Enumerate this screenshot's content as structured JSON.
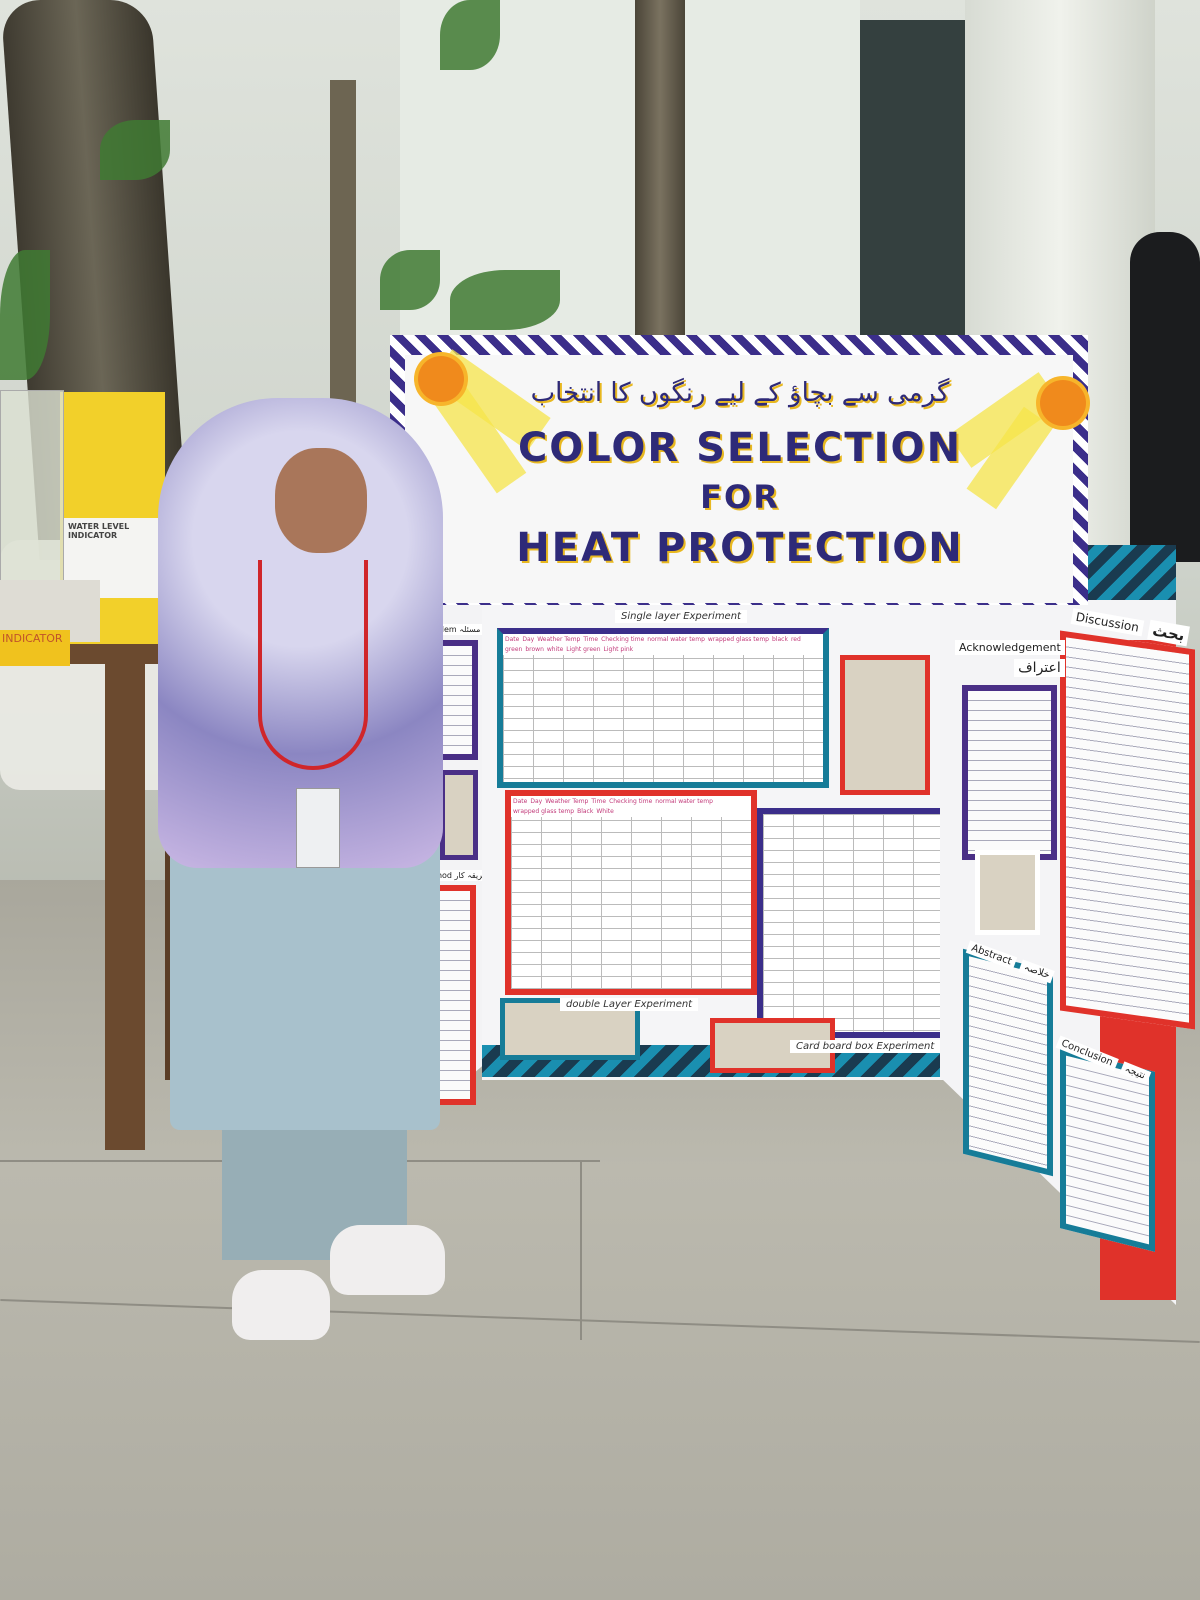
{
  "scene": {
    "type": "photograph",
    "description_colors": {
      "board_accent_teal": "#1a8fb0",
      "board_accent_purple": "#3b2e8a",
      "board_accent_red": "#e0322a",
      "title_text": "#2e2a78",
      "title_shadow": "#e8b820"
    }
  },
  "title_card": {
    "urdu_title": "گرمی سے بچاؤ کے لیے رنگوں کا انتخاب",
    "line1": "COLOR SELECTION",
    "line2": "FOR",
    "line3": "HEAT PROTECTION"
  },
  "center_panel": {
    "single_layer_label": "Single layer Experiment",
    "single_layer_headers": [
      "Date",
      "Day",
      "Weather Temp",
      "Time",
      "Checking time",
      "normal water temp",
      "wrapped glass temp",
      "black",
      "red",
      "green",
      "brown",
      "white",
      "Light green",
      "Light pink"
    ],
    "double_layer_headers": [
      "Date",
      "Day",
      "Weather Temp",
      "Time",
      "Checking time",
      "normal water temp",
      "wrapped glass temp",
      "Black",
      "White"
    ],
    "double_layer_label": "double Layer Experiment",
    "cardboard_label": "Card board box Experiment"
  },
  "left_wing": {
    "problem_label": "Problem مسئلہ",
    "method_label": "Method طریقہ کار"
  },
  "right_wing": {
    "acknowledgement_label": "Acknowledgement",
    "acknowledgement_urdu": "اعتراف",
    "discussion_label": "Discussion",
    "discussion_urdu": "بحث",
    "abstract_label": "Abstract",
    "abstract_urdu": "خلاصہ",
    "conclusion_label": "Conclusion",
    "conclusion_urdu": "نتیجہ"
  },
  "side_table": {
    "water_level_card": "WATER LEVEL INDICATOR",
    "indicator_tag": "INDICATOR"
  }
}
